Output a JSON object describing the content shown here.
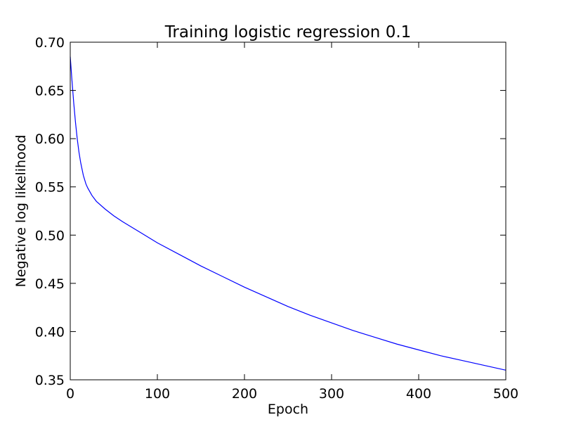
{
  "chart_data": {
    "type": "line",
    "title": "Training logistic regression 0.1",
    "xlabel": "Epoch",
    "ylabel": "Negative log likelihood",
    "xlim": [
      0,
      500
    ],
    "ylim": [
      0.35,
      0.7
    ],
    "xticks": [
      0,
      100,
      200,
      300,
      400,
      500
    ],
    "xtick_labels": [
      "0",
      "100",
      "200",
      "300",
      "400",
      "500"
    ],
    "yticks": [
      0.35,
      0.4,
      0.45,
      0.5,
      0.55,
      0.6,
      0.65,
      0.7
    ],
    "ytick_labels": [
      "0.35",
      "0.40",
      "0.45",
      "0.50",
      "0.55",
      "0.60",
      "0.65",
      "0.70"
    ],
    "grid": false,
    "series": [
      {
        "color": "#0000ff",
        "x": [
          0,
          2,
          4,
          6,
          8,
          10,
          12,
          15,
          18,
          20,
          25,
          30,
          40,
          50,
          60,
          80,
          100,
          125,
          150,
          175,
          200,
          225,
          250,
          275,
          300,
          325,
          350,
          375,
          400,
          425,
          450,
          475,
          500
        ],
        "y": [
          0.685,
          0.66,
          0.637,
          0.617,
          0.6,
          0.586,
          0.575,
          0.562,
          0.553,
          0.549,
          0.541,
          0.535,
          0.527,
          0.52,
          0.514,
          0.503,
          0.492,
          0.48,
          0.468,
          0.457,
          0.446,
          0.436,
          0.426,
          0.417,
          0.409,
          0.401,
          0.394,
          0.387,
          0.381,
          0.375,
          0.37,
          0.365,
          0.36
        ]
      }
    ]
  }
}
